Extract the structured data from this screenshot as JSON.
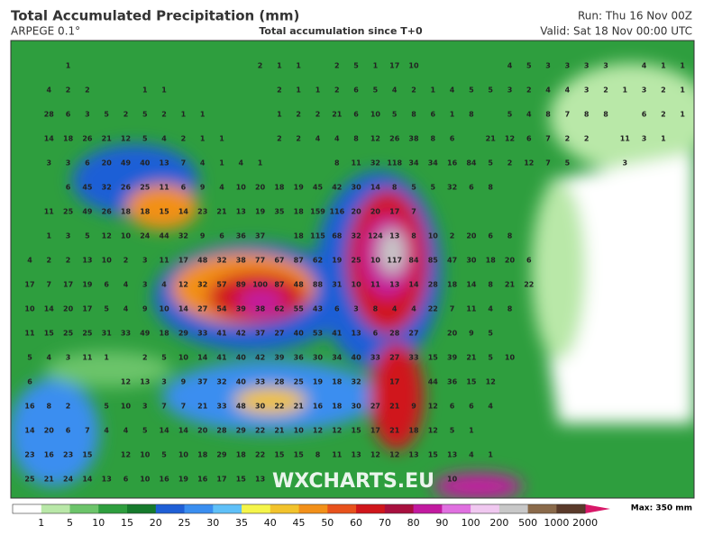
{
  "header": {
    "title": "Total Accumulated Precipitation (mm)",
    "model": "ARPEGE 0.1°",
    "subtitle": "Total accumulation since T+0",
    "run": "Run: Thu 16 Nov 00Z",
    "valid": "Valid: Sat 18 Nov 00:00 UTC"
  },
  "watermark": "WXCHARTS.EU",
  "colorbar": {
    "labels": [
      1,
      5,
      10,
      15,
      20,
      25,
      30,
      35,
      40,
      45,
      50,
      60,
      70,
      80,
      90,
      100,
      200,
      500,
      1000,
      2000
    ],
    "colors": [
      "#ffffff",
      "#b9e8a8",
      "#6cc46a",
      "#2e9e3e",
      "#167a2c",
      "#1f5fd6",
      "#3a8ef0",
      "#5fc0f8",
      "#f5f54a",
      "#f2c32c",
      "#f29019",
      "#e8521c",
      "#d0161b",
      "#a8103f",
      "#c21aa0",
      "#e070e0",
      "#f0c8f0",
      "#c8c8c8",
      "#8a6a4a",
      "#5a3a2a",
      "#d81868"
    ],
    "max": "Max: 350 mm"
  },
  "map": {
    "values": [
      [
        null,
        null,
        1,
        null,
        null,
        null,
        null,
        null,
        null,
        null,
        null,
        null,
        2,
        1,
        1,
        null,
        2,
        5,
        1,
        17,
        10,
        null,
        null,
        null,
        null,
        4,
        5,
        3,
        3,
        3,
        3,
        null,
        4,
        1,
        1
      ],
      [
        null,
        4,
        2,
        2,
        null,
        null,
        1,
        1,
        null,
        null,
        null,
        null,
        null,
        2,
        1,
        1,
        2,
        6,
        5,
        4,
        2,
        1,
        4,
        5,
        5,
        3,
        2,
        4,
        4,
        3,
        2,
        1,
        3,
        2,
        1
      ],
      [
        null,
        28,
        6,
        3,
        5,
        2,
        5,
        2,
        1,
        1,
        null,
        null,
        null,
        1,
        2,
        2,
        21,
        6,
        10,
        5,
        8,
        6,
        1,
        8,
        null,
        5,
        4,
        8,
        7,
        8,
        8,
        null,
        6,
        2,
        1
      ],
      [
        null,
        14,
        18,
        26,
        21,
        12,
        5,
        4,
        2,
        1,
        1,
        null,
        null,
        2,
        2,
        4,
        4,
        8,
        12,
        26,
        38,
        8,
        6,
        null,
        21,
        12,
        6,
        7,
        2,
        2,
        null,
        11,
        3,
        1,
        null
      ],
      [
        null,
        3,
        3,
        6,
        20,
        49,
        40,
        13,
        7,
        4,
        1,
        4,
        1,
        null,
        null,
        null,
        8,
        11,
        32,
        118,
        34,
        34,
        16,
        84,
        5,
        2,
        12,
        7,
        5,
        null,
        null,
        3,
        null,
        null,
        null
      ],
      [
        null,
        null,
        6,
        45,
        32,
        26,
        25,
        11,
        6,
        9,
        4,
        10,
        20,
        18,
        19,
        45,
        42,
        30,
        14,
        8,
        5,
        5,
        32,
        6,
        8,
        null,
        null,
        null,
        null,
        null,
        null,
        null,
        null,
        null,
        null
      ],
      [
        null,
        11,
        25,
        49,
        26,
        18,
        18,
        15,
        14,
        23,
        21,
        13,
        19,
        35,
        18,
        159,
        116,
        20,
        20,
        17,
        7,
        null,
        null,
        null,
        null,
        null,
        null,
        null,
        null,
        null,
        null,
        null,
        null,
        null,
        null
      ],
      [
        null,
        1,
        3,
        5,
        12,
        10,
        24,
        44,
        32,
        9,
        6,
        36,
        37,
        null,
        18,
        115,
        68,
        32,
        124,
        13,
        8,
        10,
        2,
        20,
        6,
        8,
        null,
        null,
        null,
        null,
        null,
        null,
        null,
        null,
        null
      ],
      [
        4,
        2,
        2,
        13,
        10,
        2,
        3,
        11,
        17,
        48,
        32,
        38,
        77,
        67,
        87,
        62,
        19,
        25,
        10,
        117,
        84,
        85,
        47,
        30,
        18,
        20,
        6,
        null,
        null,
        null,
        null,
        null,
        null,
        null,
        null
      ],
      [
        17,
        7,
        17,
        19,
        6,
        4,
        3,
        4,
        12,
        32,
        57,
        89,
        100,
        87,
        48,
        88,
        31,
        10,
        11,
        13,
        14,
        28,
        18,
        14,
        8,
        21,
        22,
        null,
        null,
        null,
        null,
        null,
        null,
        null,
        null
      ],
      [
        10,
        14,
        20,
        17,
        5,
        4,
        9,
        10,
        14,
        27,
        54,
        39,
        38,
        62,
        55,
        43,
        6,
        3,
        8,
        4,
        4,
        22,
        7,
        11,
        4,
        8,
        null,
        null,
        null,
        null,
        null,
        null,
        null,
        null,
        null
      ],
      [
        11,
        15,
        25,
        25,
        31,
        33,
        49,
        18,
        29,
        33,
        41,
        42,
        37,
        27,
        40,
        53,
        41,
        13,
        6,
        28,
        27,
        null,
        20,
        9,
        5,
        null,
        null,
        null,
        null,
        null,
        null,
        null,
        null,
        null,
        null
      ],
      [
        5,
        4,
        3,
        11,
        1,
        null,
        2,
        5,
        10,
        14,
        41,
        40,
        42,
        39,
        36,
        30,
        34,
        40,
        33,
        27,
        33,
        15,
        39,
        21,
        5,
        10,
        null,
        null,
        null,
        null,
        null,
        null,
        null,
        null,
        null
      ],
      [
        6,
        null,
        null,
        null,
        null,
        12,
        13,
        3,
        9,
        37,
        32,
        40,
        33,
        28,
        25,
        19,
        18,
        32,
        null,
        17,
        null,
        44,
        36,
        15,
        12,
        null,
        null,
        null,
        null,
        null,
        null,
        null,
        null,
        null,
        null
      ],
      [
        16,
        8,
        2,
        null,
        5,
        10,
        3,
        7,
        7,
        21,
        33,
        48,
        30,
        22,
        21,
        16,
        18,
        30,
        27,
        21,
        9,
        12,
        6,
        6,
        4,
        null,
        null,
        null,
        null,
        null,
        null,
        null,
        null,
        null,
        null
      ],
      [
        14,
        20,
        6,
        7,
        4,
        4,
        5,
        14,
        14,
        20,
        28,
        29,
        22,
        21,
        10,
        12,
        12,
        15,
        17,
        21,
        18,
        12,
        5,
        1,
        null,
        null,
        null,
        null,
        null,
        null,
        null,
        null,
        null,
        null,
        null
      ],
      [
        23,
        16,
        23,
        15,
        null,
        12,
        10,
        5,
        10,
        18,
        29,
        18,
        22,
        15,
        15,
        8,
        11,
        13,
        12,
        12,
        13,
        15,
        13,
        4,
        1,
        null,
        null,
        null,
        null,
        null,
        null,
        null,
        null,
        null,
        null
      ],
      [
        25,
        21,
        24,
        14,
        13,
        6,
        10,
        16,
        19,
        16,
        17,
        15,
        13,
        null,
        null,
        null,
        null,
        null,
        null,
        null,
        null,
        null,
        10,
        null,
        null,
        null,
        null,
        null,
        null,
        null,
        null,
        null,
        null,
        null,
        null
      ]
    ]
  }
}
